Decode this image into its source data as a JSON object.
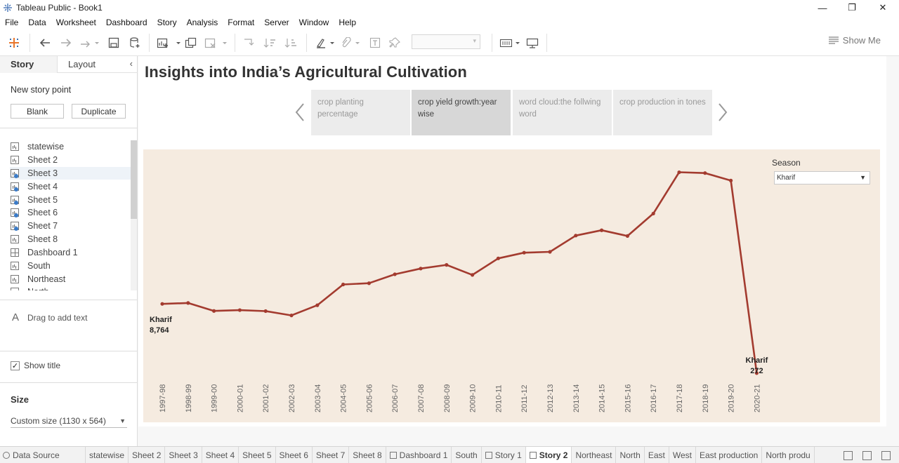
{
  "window": {
    "title": "Tableau Public - Book1",
    "minimize": "—",
    "maximize": "❐",
    "close": "✕"
  },
  "menu": [
    "File",
    "Data",
    "Worksheet",
    "Dashboard",
    "Story",
    "Analysis",
    "Format",
    "Server",
    "Window",
    "Help"
  ],
  "toolbar": {
    "show_me": "Show Me"
  },
  "left_panel": {
    "tabs": {
      "story": "Story",
      "layout": "Layout"
    },
    "new_story_point": "New story point",
    "blank_button": "Blank",
    "duplicate_button": "Duplicate",
    "sheets": [
      {
        "label": "statewise",
        "icon": "sheet-icon",
        "used": false
      },
      {
        "label": "Sheet 2",
        "icon": "sheet-icon",
        "used": false
      },
      {
        "label": "Sheet 3",
        "icon": "sheet-icon",
        "used": true
      },
      {
        "label": "Sheet 4",
        "icon": "sheet-icon",
        "used": true
      },
      {
        "label": "Sheet 5",
        "icon": "sheet-icon",
        "used": true
      },
      {
        "label": "Sheet 6",
        "icon": "sheet-icon",
        "used": true
      },
      {
        "label": "Sheet 7",
        "icon": "sheet-icon",
        "used": true
      },
      {
        "label": "Sheet 8",
        "icon": "sheet-icon",
        "used": false
      },
      {
        "label": "Dashboard 1",
        "icon": "dashboard-icon",
        "used": false
      },
      {
        "label": "South",
        "icon": "sheet-icon",
        "used": false
      },
      {
        "label": "Northeast",
        "icon": "sheet-icon",
        "used": false
      },
      {
        "label": "North",
        "icon": "sheet-icon",
        "used": false
      }
    ],
    "drag_text": "Drag to add text",
    "show_title": "Show title",
    "size_label": "Size",
    "size_value": "Custom size (1130 x 564)"
  },
  "story": {
    "title": "Insights into India’s Agricultural Cultivation",
    "points": [
      {
        "label": "crop planting percentage",
        "active": false
      },
      {
        "label": "crop yield growth:year wise",
        "active": true
      },
      {
        "label": "word cloud:the follwing word",
        "active": false
      },
      {
        "label": "crop production in tones",
        "active": false
      }
    ]
  },
  "filter": {
    "label": "Season",
    "value": "Kharif"
  },
  "chart_data": {
    "type": "line",
    "x": [
      "1997-98",
      "1998-99",
      "1999-00",
      "2000-01",
      "2001-02",
      "2002-03",
      "2003-04",
      "2004-05",
      "2005-06",
      "2006-07",
      "2007-08",
      "2008-09",
      "2009-10",
      "2010-11",
      "2011-12",
      "2012-13",
      "2013-14",
      "2014-15",
      "2015-16",
      "2016-17",
      "2017-18",
      "2018-19",
      "2019-20",
      "2020-21"
    ],
    "values": [
      8764,
      8880,
      7900,
      8000,
      7880,
      7350,
      8600,
      11150,
      11300,
      12400,
      13100,
      13550,
      12320,
      14350,
      15050,
      15150,
      17150,
      17800,
      17100,
      19850,
      24920,
      24820,
      23900,
      272
    ],
    "color": "#a33b2f",
    "annotations": [
      {
        "series": "Kharif",
        "value": "8,764"
      },
      {
        "series": "Kharif",
        "value": "272"
      }
    ],
    "xlabel": "",
    "ylabel": "",
    "ylim": [
      0,
      26000
    ],
    "grid": false
  },
  "bottom_tabs": [
    {
      "label": "Data Source",
      "icon": "datasource-icon",
      "active": false
    },
    {
      "label": "statewise",
      "active": false
    },
    {
      "label": "Sheet 2",
      "active": false
    },
    {
      "label": "Sheet 3",
      "active": false
    },
    {
      "label": "Sheet 4",
      "active": false
    },
    {
      "label": "Sheet 5",
      "active": false
    },
    {
      "label": "Sheet 6",
      "active": false
    },
    {
      "label": "Sheet 7",
      "active": false
    },
    {
      "label": "Sheet 8",
      "active": false
    },
    {
      "label": "Dashboard 1",
      "icon": "dashboard-icon",
      "active": false
    },
    {
      "label": "South",
      "active": false
    },
    {
      "label": "Story 1",
      "icon": "story-icon",
      "active": false
    },
    {
      "label": "Story 2",
      "icon": "story-icon",
      "active": true
    },
    {
      "label": "Northeast",
      "active": false
    },
    {
      "label": "North",
      "active": false
    },
    {
      "label": "East",
      "active": false
    },
    {
      "label": "West",
      "active": false
    },
    {
      "label": "East production",
      "active": false
    },
    {
      "label": "North produ",
      "active": false
    }
  ]
}
